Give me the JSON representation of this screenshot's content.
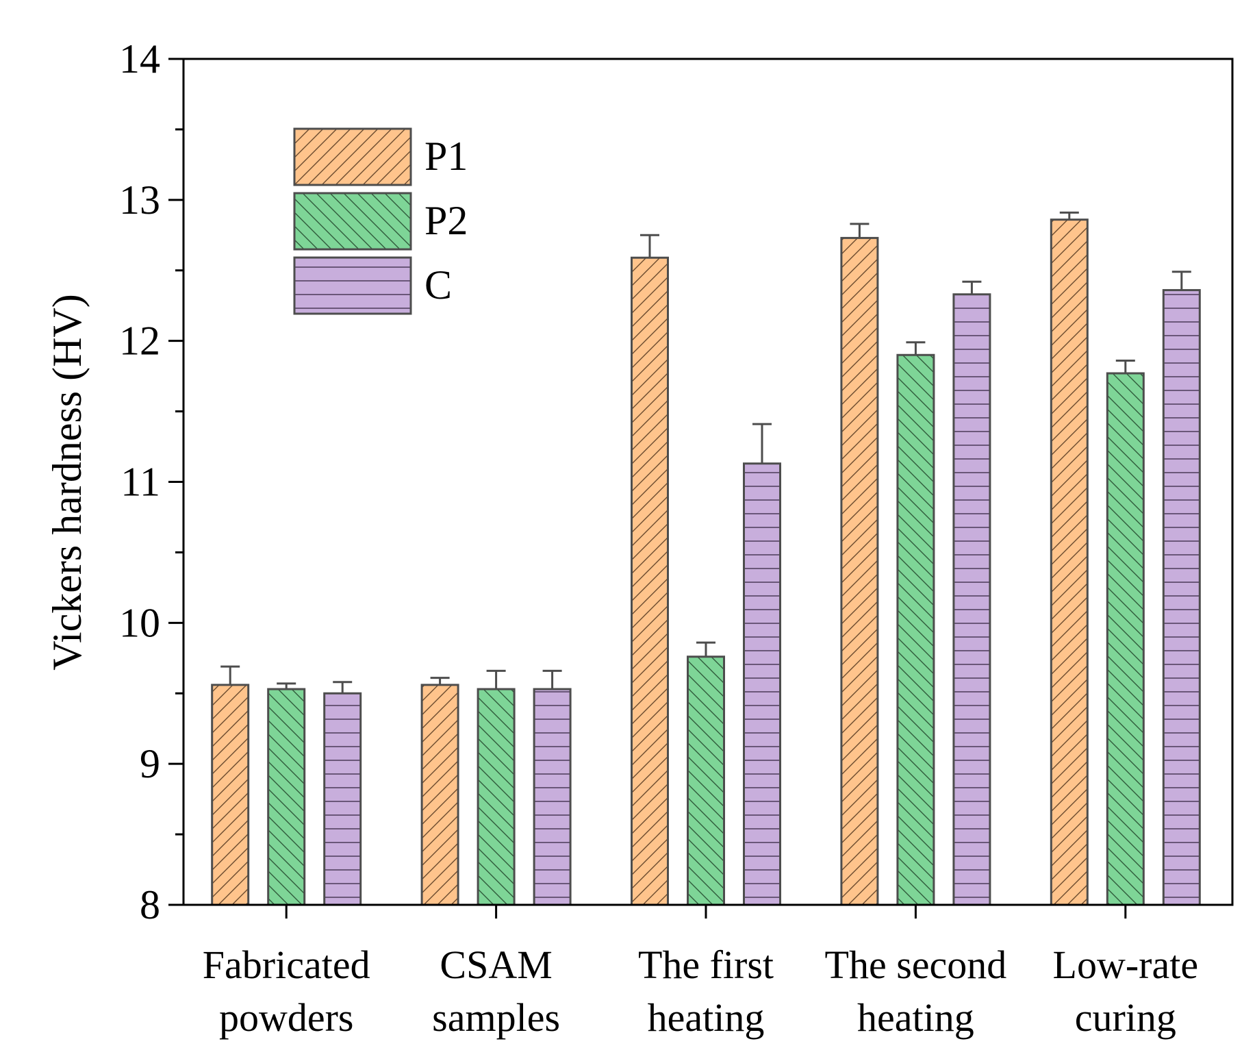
{
  "chart_data": {
    "type": "bar",
    "title": "",
    "xlabel": "",
    "ylabel": "Vickers hardness (HV)",
    "ylim": [
      8,
      14
    ],
    "yticks": [
      "8",
      "9",
      "10",
      "11",
      "12",
      "13",
      "14"
    ],
    "categories": [
      [
        "Fabricated",
        "powders"
      ],
      [
        "CSAM",
        "samples"
      ],
      [
        "The first",
        "heating"
      ],
      [
        "The second",
        "heating"
      ],
      [
        "Low-rate",
        "curing"
      ]
    ],
    "series": [
      {
        "name": "P1",
        "color": "#FFC48C",
        "pattern": "diagonal-up",
        "values": [
          9.56,
          9.56,
          12.59,
          12.73,
          12.86
        ],
        "errors": [
          0.13,
          0.05,
          0.16,
          0.1,
          0.05
        ]
      },
      {
        "name": "P2",
        "color": "#7ED597",
        "pattern": "diagonal-down",
        "values": [
          9.53,
          9.53,
          9.76,
          11.9,
          11.77
        ],
        "errors": [
          0.04,
          0.13,
          0.1,
          0.09,
          0.09
        ]
      },
      {
        "name": "C",
        "color": "#C8AEDC",
        "pattern": "horizontal",
        "values": [
          9.5,
          9.53,
          11.13,
          12.33,
          12.36
        ],
        "errors": [
          0.08,
          0.13,
          0.28,
          0.09,
          0.13
        ]
      }
    ],
    "legend": {
      "position": "top-left"
    },
    "grid": false
  }
}
